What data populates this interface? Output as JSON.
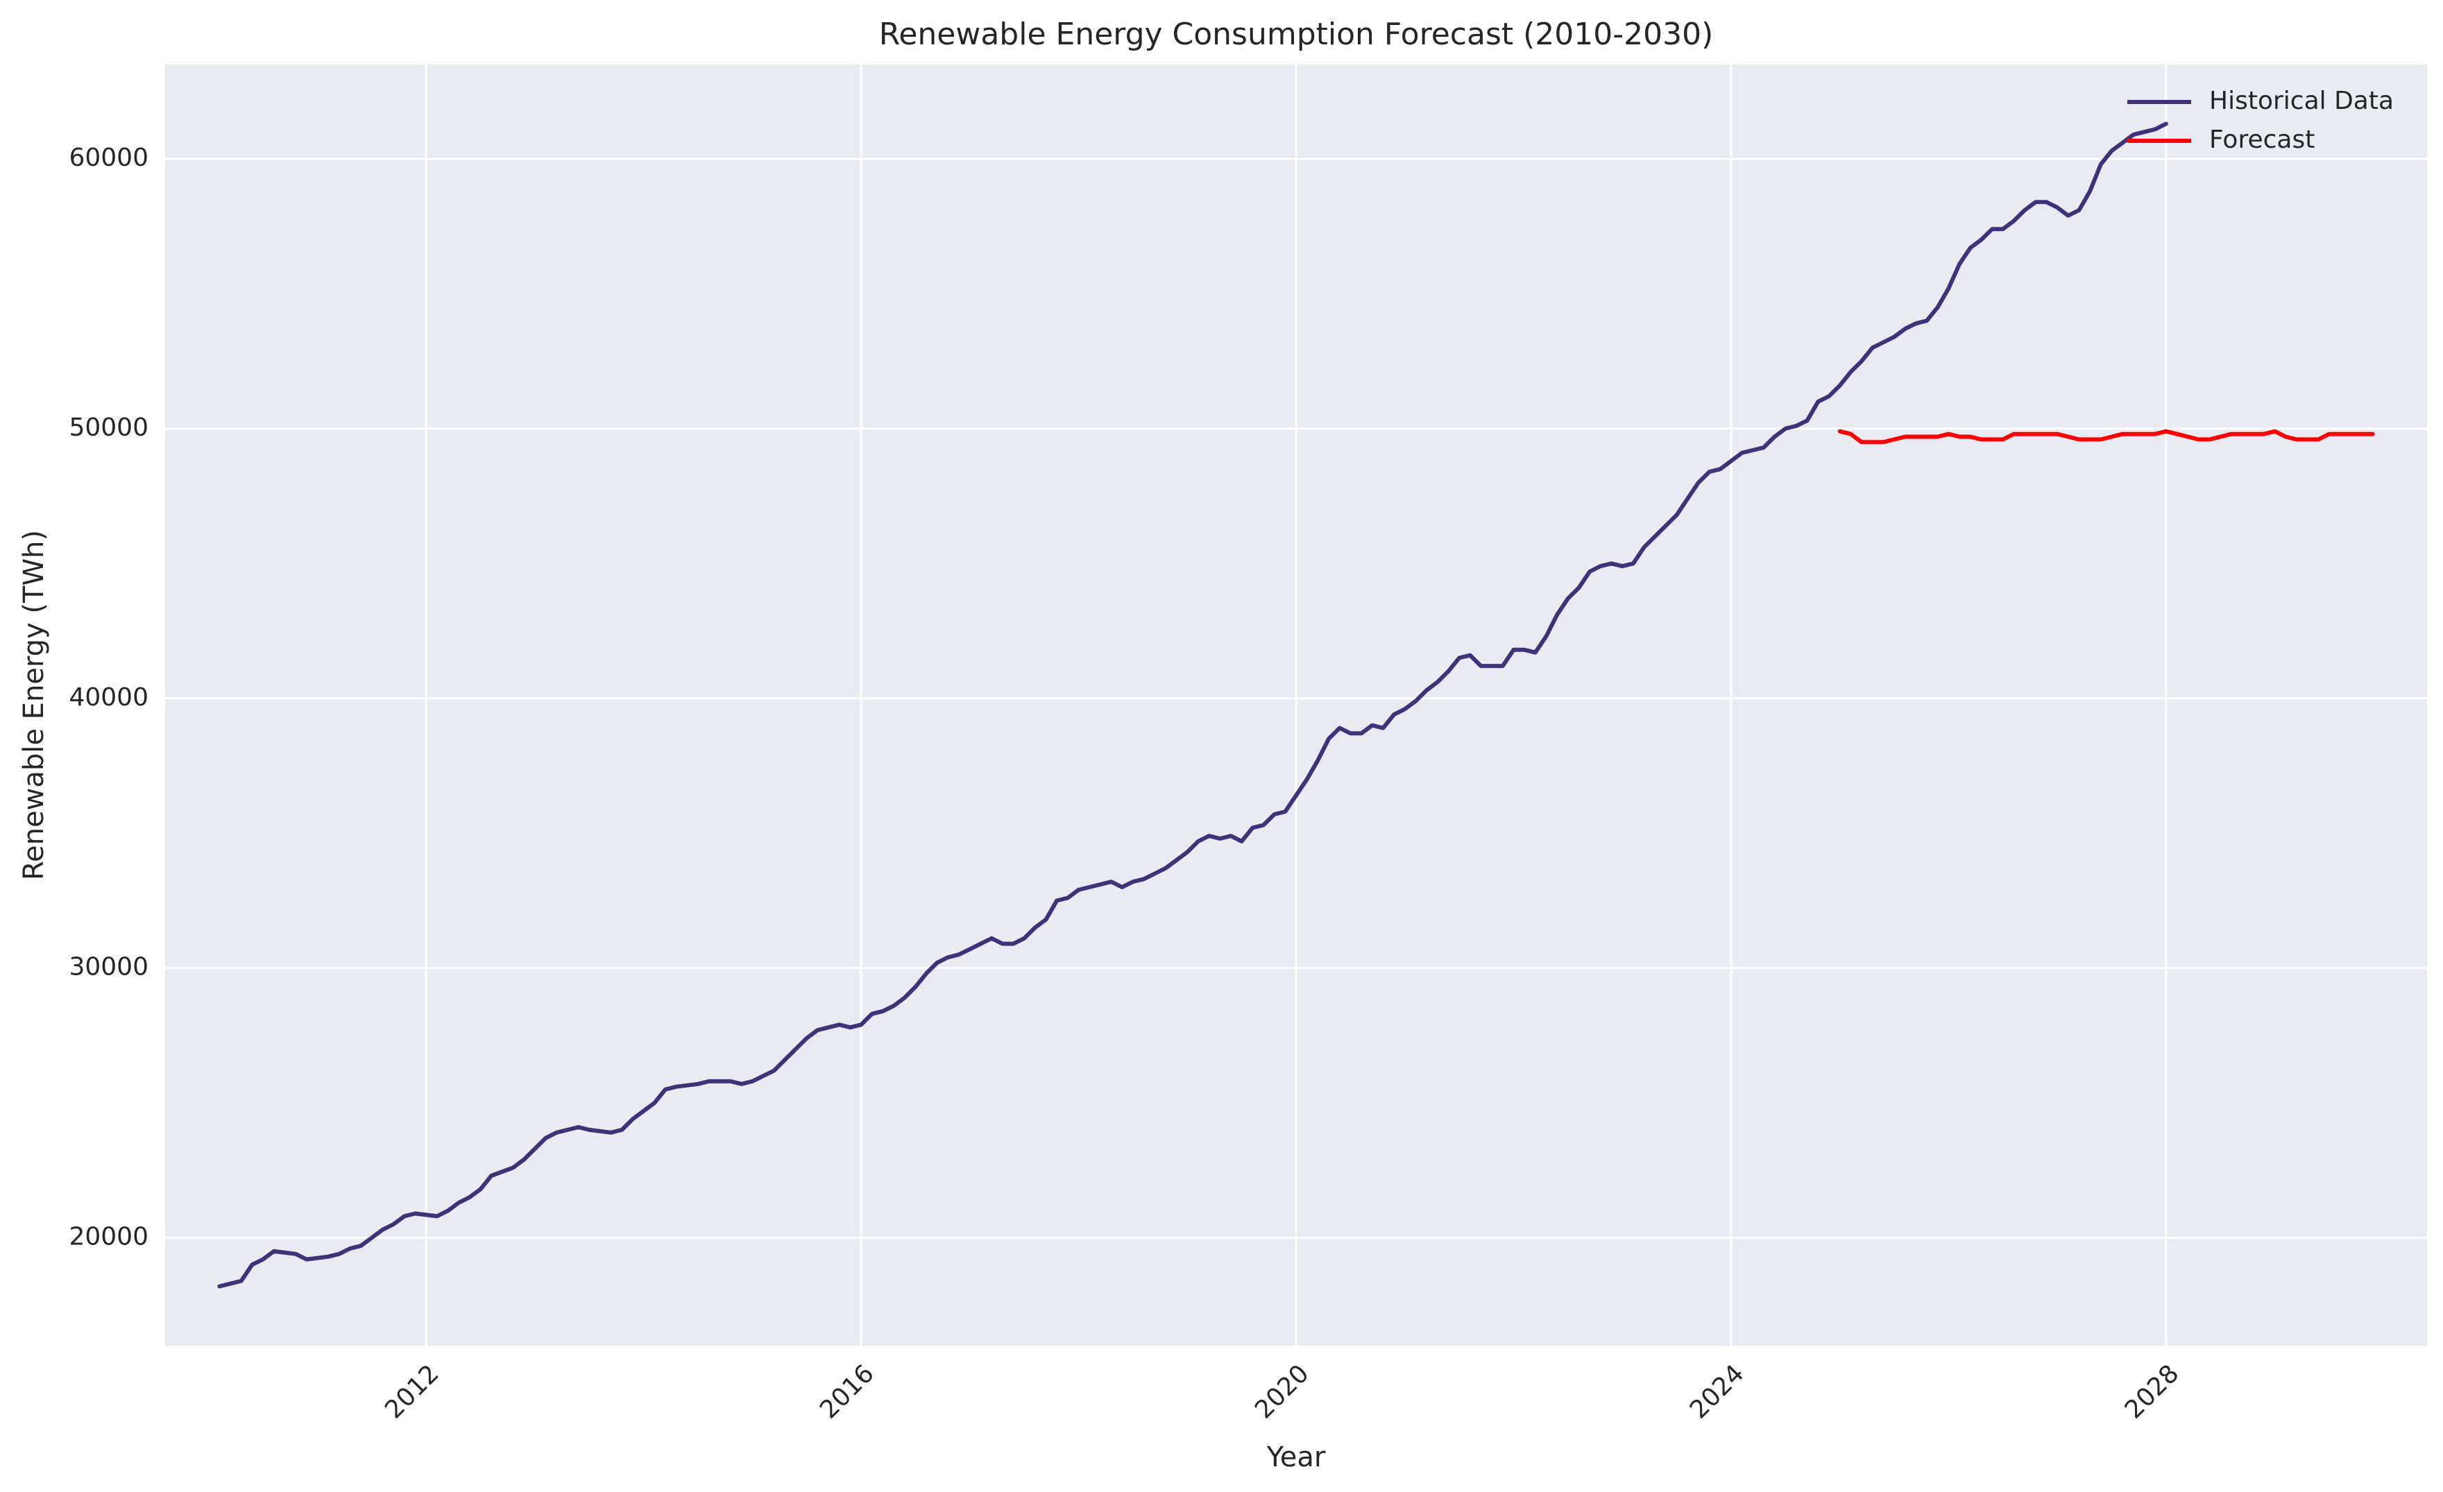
{
  "chart_data": {
    "type": "line",
    "title": "Renewable Energy Consumption Forecast (2010-2030)",
    "xlabel": "Year",
    "ylabel": "Renewable Energy (TWh)",
    "xlim": [
      2009.6,
      2030.4
    ],
    "ylim": [
      16000,
      63500
    ],
    "x_ticks": [
      2012,
      2016,
      2020,
      2024,
      2028
    ],
    "x_tick_labels": [
      "2012",
      "2016",
      "2020",
      "2024",
      "2028"
    ],
    "y_ticks": [
      20000,
      30000,
      40000,
      50000,
      60000
    ],
    "y_tick_labels": [
      "20000",
      "30000",
      "40000",
      "50000",
      "60000"
    ],
    "grid": true,
    "legend_position": "top-right",
    "background_color": "#eaeaf2",
    "series": [
      {
        "name": "Historical Data",
        "color": "#3f3279",
        "points": [
          [
            2010.1,
            18200
          ],
          [
            2010.3,
            18400
          ],
          [
            2010.4,
            19000
          ],
          [
            2010.5,
            19200
          ],
          [
            2010.6,
            19500
          ],
          [
            2010.8,
            19400
          ],
          [
            2010.9,
            19200
          ],
          [
            2011.1,
            19300
          ],
          [
            2011.2,
            19400
          ],
          [
            2011.3,
            19600
          ],
          [
            2011.4,
            19700
          ],
          [
            2011.5,
            20000
          ],
          [
            2011.6,
            20300
          ],
          [
            2011.7,
            20500
          ],
          [
            2011.8,
            20800
          ],
          [
            2011.9,
            20900
          ],
          [
            2012.1,
            20800
          ],
          [
            2012.2,
            21000
          ],
          [
            2012.3,
            21300
          ],
          [
            2012.4,
            21500
          ],
          [
            2012.5,
            21800
          ],
          [
            2012.6,
            22300
          ],
          [
            2012.8,
            22600
          ],
          [
            2012.9,
            22900
          ],
          [
            2013.0,
            23300
          ],
          [
            2013.1,
            23700
          ],
          [
            2013.2,
            23900
          ],
          [
            2013.3,
            24000
          ],
          [
            2013.4,
            24100
          ],
          [
            2013.5,
            24000
          ],
          [
            2013.7,
            23900
          ],
          [
            2013.8,
            24000
          ],
          [
            2013.9,
            24400
          ],
          [
            2014.0,
            24700
          ],
          [
            2014.1,
            25000
          ],
          [
            2014.2,
            25500
          ],
          [
            2014.3,
            25600
          ],
          [
            2014.5,
            25700
          ],
          [
            2014.6,
            25800
          ],
          [
            2014.7,
            25800
          ],
          [
            2014.8,
            25800
          ],
          [
            2014.9,
            25700
          ],
          [
            2015.0,
            25800
          ],
          [
            2015.1,
            26000
          ],
          [
            2015.2,
            26200
          ],
          [
            2015.3,
            26600
          ],
          [
            2015.4,
            27000
          ],
          [
            2015.5,
            27400
          ],
          [
            2015.6,
            27700
          ],
          [
            2015.7,
            27800
          ],
          [
            2015.8,
            27900
          ],
          [
            2015.9,
            27800
          ],
          [
            2016.0,
            27900
          ],
          [
            2016.1,
            28300
          ],
          [
            2016.2,
            28400
          ],
          [
            2016.3,
            28600
          ],
          [
            2016.4,
            28900
          ],
          [
            2016.5,
            29300
          ],
          [
            2016.6,
            29800
          ],
          [
            2016.7,
            30200
          ],
          [
            2016.8,
            30400
          ],
          [
            2016.9,
            30500
          ],
          [
            2017.0,
            30700
          ],
          [
            2017.1,
            30900
          ],
          [
            2017.2,
            31100
          ],
          [
            2017.3,
            30900
          ],
          [
            2017.4,
            30900
          ],
          [
            2017.5,
            31100
          ],
          [
            2017.6,
            31500
          ],
          [
            2017.7,
            31800
          ],
          [
            2017.8,
            32500
          ],
          [
            2017.9,
            32600
          ],
          [
            2018.0,
            32900
          ],
          [
            2018.1,
            33000
          ],
          [
            2018.2,
            33100
          ],
          [
            2018.3,
            33200
          ],
          [
            2018.4,
            33000
          ],
          [
            2018.5,
            33200
          ],
          [
            2018.6,
            33300
          ],
          [
            2018.7,
            33500
          ],
          [
            2018.8,
            33700
          ],
          [
            2018.9,
            34000
          ],
          [
            2019.0,
            34300
          ],
          [
            2019.1,
            34700
          ],
          [
            2019.2,
            34900
          ],
          [
            2019.3,
            34800
          ],
          [
            2019.4,
            34900
          ],
          [
            2019.5,
            34700
          ],
          [
            2019.6,
            35200
          ],
          [
            2019.7,
            35300
          ],
          [
            2019.8,
            35700
          ],
          [
            2019.9,
            35800
          ],
          [
            2020.0,
            36400
          ],
          [
            2020.1,
            37000
          ],
          [
            2020.2,
            37700
          ],
          [
            2020.3,
            38500
          ],
          [
            2020.4,
            38900
          ],
          [
            2020.5,
            38700
          ],
          [
            2020.6,
            38700
          ],
          [
            2020.7,
            39000
          ],
          [
            2020.8,
            38900
          ],
          [
            2020.9,
            39400
          ],
          [
            2021.0,
            39600
          ],
          [
            2021.1,
            39900
          ],
          [
            2021.2,
            40300
          ],
          [
            2021.3,
            40600
          ],
          [
            2021.4,
            41000
          ],
          [
            2021.5,
            41500
          ],
          [
            2021.6,
            41600
          ],
          [
            2021.7,
            41200
          ],
          [
            2021.8,
            41200
          ],
          [
            2021.9,
            41200
          ],
          [
            2022.0,
            41800
          ],
          [
            2022.1,
            41800
          ],
          [
            2022.2,
            41700
          ],
          [
            2022.3,
            42300
          ],
          [
            2022.4,
            43100
          ],
          [
            2022.5,
            43700
          ],
          [
            2022.6,
            44100
          ],
          [
            2022.7,
            44700
          ],
          [
            2022.8,
            44900
          ],
          [
            2022.9,
            45000
          ],
          [
            2023.0,
            44900
          ],
          [
            2023.1,
            45000
          ],
          [
            2023.2,
            45600
          ],
          [
            2023.3,
            46000
          ],
          [
            2023.4,
            46400
          ],
          [
            2023.5,
            46800
          ],
          [
            2023.6,
            47400
          ],
          [
            2023.7,
            48000
          ],
          [
            2023.8,
            48400
          ],
          [
            2023.9,
            48500
          ],
          [
            2024.0,
            48800
          ],
          [
            2024.1,
            49100
          ],
          [
            2024.2,
            49200
          ],
          [
            2024.3,
            49300
          ],
          [
            2024.4,
            49700
          ],
          [
            2024.5,
            50000
          ],
          [
            2024.6,
            50100
          ],
          [
            2024.7,
            50300
          ],
          [
            2024.8,
            51000
          ],
          [
            2024.9,
            51200
          ],
          [
            2025.0,
            51600
          ],
          [
            2025.1,
            52100
          ],
          [
            2025.2,
            52500
          ],
          [
            2025.3,
            53000
          ],
          [
            2025.4,
            53200
          ],
          [
            2025.5,
            53400
          ],
          [
            2025.6,
            53700
          ],
          [
            2025.7,
            53900
          ],
          [
            2025.8,
            54000
          ],
          [
            2025.9,
            54500
          ],
          [
            2026.0,
            55200
          ],
          [
            2026.1,
            56100
          ],
          [
            2026.2,
            56700
          ],
          [
            2026.3,
            57000
          ],
          [
            2026.4,
            57400
          ],
          [
            2026.5,
            57400
          ],
          [
            2026.6,
            57700
          ],
          [
            2026.7,
            58100
          ],
          [
            2026.8,
            58400
          ],
          [
            2026.9,
            58400
          ],
          [
            2027.0,
            58200
          ],
          [
            2027.1,
            57900
          ],
          [
            2027.2,
            58100
          ],
          [
            2027.3,
            58800
          ],
          [
            2027.4,
            59800
          ],
          [
            2027.5,
            60300
          ],
          [
            2027.6,
            60600
          ],
          [
            2027.7,
            60900
          ],
          [
            2027.8,
            61000
          ],
          [
            2027.9,
            61100
          ],
          [
            2028.0,
            61300
          ]
        ]
      },
      {
        "name": "Forecast",
        "color": "#ff0000",
        "points": [
          [
            2025.0,
            49900
          ],
          [
            2025.1,
            49800
          ],
          [
            2025.2,
            49500
          ],
          [
            2025.3,
            49500
          ],
          [
            2025.4,
            49500
          ],
          [
            2025.5,
            49600
          ],
          [
            2025.6,
            49700
          ],
          [
            2025.7,
            49700
          ],
          [
            2025.8,
            49700
          ],
          [
            2025.9,
            49700
          ],
          [
            2026.0,
            49800
          ],
          [
            2026.1,
            49700
          ],
          [
            2026.2,
            49700
          ],
          [
            2026.3,
            49600
          ],
          [
            2026.4,
            49600
          ],
          [
            2026.5,
            49600
          ],
          [
            2026.6,
            49800
          ],
          [
            2026.7,
            49800
          ],
          [
            2026.8,
            49800
          ],
          [
            2026.9,
            49800
          ],
          [
            2027.0,
            49800
          ],
          [
            2027.1,
            49700
          ],
          [
            2027.2,
            49600
          ],
          [
            2027.3,
            49600
          ],
          [
            2027.4,
            49600
          ],
          [
            2027.5,
            49700
          ],
          [
            2027.6,
            49800
          ],
          [
            2027.7,
            49800
          ],
          [
            2027.8,
            49800
          ],
          [
            2027.9,
            49800
          ],
          [
            2028.0,
            49900
          ],
          [
            2028.1,
            49800
          ],
          [
            2028.2,
            49700
          ],
          [
            2028.3,
            49600
          ],
          [
            2028.4,
            49600
          ],
          [
            2028.5,
            49700
          ],
          [
            2028.6,
            49800
          ],
          [
            2028.7,
            49800
          ],
          [
            2028.8,
            49800
          ],
          [
            2028.9,
            49800
          ],
          [
            2029.0,
            49900
          ],
          [
            2029.1,
            49700
          ],
          [
            2029.2,
            49600
          ],
          [
            2029.3,
            49600
          ],
          [
            2029.4,
            49600
          ],
          [
            2029.5,
            49800
          ],
          [
            2029.6,
            49800
          ],
          [
            2029.7,
            49800
          ],
          [
            2029.8,
            49800
          ],
          [
            2029.9,
            49800
          ]
        ]
      }
    ]
  }
}
